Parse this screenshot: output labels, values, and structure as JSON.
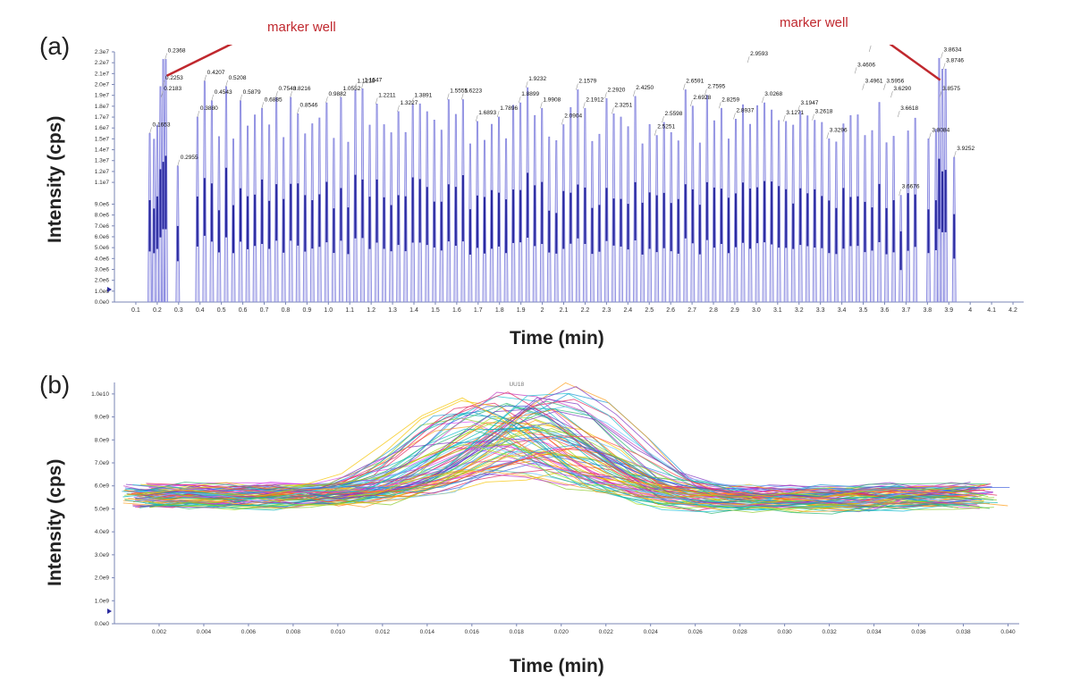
{
  "chart_data": [
    {
      "type": "line",
      "panel_label": "(a)",
      "xlabel": "Time (min)",
      "ylabel": "Intensity (cps)",
      "xlim": [
        0,
        4.25
      ],
      "ylim": [
        0,
        23000000
      ],
      "x_ticks": [
        0.1,
        0.2,
        0.3,
        0.4,
        0.5,
        0.6,
        0.7,
        0.8,
        0.9,
        1.0,
        1.1,
        1.2,
        1.3,
        1.4,
        1.5,
        1.6,
        1.7,
        1.8,
        1.9,
        2,
        2.1,
        2.2,
        2.3,
        2.4,
        2.5,
        2.6,
        2.7,
        2.8,
        2.9,
        3.0,
        3.1,
        3.2,
        3.3,
        3.4,
        3.5,
        3.6,
        3.7,
        3.8,
        3.9,
        4,
        4.1,
        4.2
      ],
      "x_tick_labels": [
        "0.1",
        "0.2",
        "0.3",
        "0.4",
        "0.5",
        "0.6",
        "0.7",
        "0.8",
        "0.9",
        "1.0",
        "1.1",
        "1.2",
        "1.3",
        "1.4",
        "1.5",
        "1.6",
        "1.7",
        "1.8",
        "1.9",
        "2",
        "2.1",
        "2.2",
        "2.3",
        "2.4",
        "2.5",
        "2.6",
        "2.7",
        "2.8",
        "2.9",
        "3.0",
        "3.1",
        "3.2",
        "3.3",
        "3.4",
        "3.5",
        "3.6",
        "3.7",
        "3.8",
        "3.9",
        "4",
        "4.1",
        "4.2"
      ],
      "y_ticks": [
        0,
        1000000,
        2000000,
        3000000,
        4000000,
        5000000,
        6000000,
        7000000,
        8000000,
        9000000,
        11000000,
        12000000,
        13000000,
        14000000,
        15000000,
        16000000,
        17000000,
        18000000,
        19000000,
        20000000,
        21000000,
        22000000,
        23000000
      ],
      "y_tick_labels": [
        "0.0e0",
        "1.0e6",
        "2.0e6",
        "3.0e6",
        "4.0e6",
        "5.0e6",
        "6.0e6",
        "7.0e6",
        "8.0e6",
        "9.0e6",
        "1.1e7",
        "1.2e7",
        "1.3e7",
        "1.4e7",
        "1.5e7",
        "1.6e7",
        "1.7e7",
        "1.8e7",
        "1.9e7",
        "2.0e7",
        "2.1e7",
        "2.2e7",
        "2.3e7"
      ],
      "peaks": [
        {
          "x": 0.1653,
          "y": 15500000
        },
        {
          "x": 0.2183,
          "y": 18800000
        },
        {
          "x": 0.2253,
          "y": 19800000
        },
        {
          "x": 0.2368,
          "y": 22300000
        },
        {
          "x": 0.2955,
          "y": 12500000
        },
        {
          "x": 0.388,
          "y": 17000000
        },
        {
          "x": 0.4207,
          "y": 20300000
        },
        {
          "x": 0.4543,
          "y": 18500000
        },
        {
          "x": 0.5208,
          "y": 19800000
        },
        {
          "x": 0.5879,
          "y": 18500000
        },
        {
          "x": 0.6885,
          "y": 17800000
        },
        {
          "x": 0.7543,
          "y": 18800000
        },
        {
          "x": 0.8216,
          "y": 18800000
        },
        {
          "x": 0.8546,
          "y": 17300000
        },
        {
          "x": 0.9882,
          "y": 18300000
        },
        {
          "x": 1.0552,
          "y": 18800000
        },
        {
          "x": 1.1218,
          "y": 19500000
        },
        {
          "x": 1.1547,
          "y": 19600000
        },
        {
          "x": 1.2211,
          "y": 18200000
        },
        {
          "x": 1.3227,
          "y": 17500000
        },
        {
          "x": 1.3891,
          "y": 18200000
        },
        {
          "x": 1.5555,
          "y": 18600000
        },
        {
          "x": 1.6223,
          "y": 18600000
        },
        {
          "x": 1.6893,
          "y": 16600000
        },
        {
          "x": 1.7896,
          "y": 17000000
        },
        {
          "x": 1.8899,
          "y": 18300000
        },
        {
          "x": 1.9232,
          "y": 19700000
        },
        {
          "x": 1.9908,
          "y": 17800000
        },
        {
          "x": 2.0904,
          "y": 16300000
        },
        {
          "x": 2.1579,
          "y": 19500000
        },
        {
          "x": 2.1912,
          "y": 17800000
        },
        {
          "x": 2.292,
          "y": 18700000
        },
        {
          "x": 2.3251,
          "y": 17300000
        },
        {
          "x": 2.425,
          "y": 18900000
        },
        {
          "x": 2.5251,
          "y": 15300000
        },
        {
          "x": 2.5598,
          "y": 16500000
        },
        {
          "x": 2.6591,
          "y": 19500000
        },
        {
          "x": 2.6928,
          "y": 18000000
        },
        {
          "x": 2.7595,
          "y": 19000000
        },
        {
          "x": 2.8259,
          "y": 17800000
        },
        {
          "x": 2.8937,
          "y": 16800000
        },
        {
          "x": 2.9593,
          "y": 22000000
        },
        {
          "x": 3.0268,
          "y": 18300000
        },
        {
          "x": 3.1271,
          "y": 16600000
        },
        {
          "x": 3.1947,
          "y": 17500000
        },
        {
          "x": 3.2618,
          "y": 16700000
        },
        {
          "x": 3.3296,
          "y": 15000000
        },
        {
          "x": 3.4606,
          "y": 21000000
        },
        {
          "x": 3.4961,
          "y": 19500000
        },
        {
          "x": 3.5278,
          "y": 23000000
        },
        {
          "x": 3.5956,
          "y": 19500000
        },
        {
          "x": 3.629,
          "y": 18800000
        },
        {
          "x": 3.6618,
          "y": 17000000
        },
        {
          "x": 3.6676,
          "y": 9800000
        },
        {
          "x": 3.8084,
          "y": 15000000
        },
        {
          "x": 3.8575,
          "y": 18800000
        },
        {
          "x": 3.8634,
          "y": 22400000
        },
        {
          "x": 3.8746,
          "y": 21400000
        },
        {
          "x": 3.9252,
          "y": 13300000
        }
      ],
      "annotations": [
        "marker well",
        "marker well"
      ]
    },
    {
      "type": "line",
      "panel_label": "(b)",
      "xlabel": "Time (min)",
      "ylabel": "Intensity (cps)",
      "xlim": [
        0,
        0.0405
      ],
      "ylim": [
        0,
        10500000000
      ],
      "x_ticks": [
        0.002,
        0.004,
        0.006,
        0.008,
        0.01,
        0.012,
        0.014,
        0.016,
        0.018,
        0.02,
        0.022,
        0.024,
        0.026,
        0.028,
        0.03,
        0.032,
        0.034,
        0.036,
        0.038,
        0.04
      ],
      "x_tick_labels": [
        "0.002",
        "0.004",
        "0.006",
        "0.008",
        "0.010",
        "0.012",
        "0.014",
        "0.016",
        "0.018",
        "0.020",
        "0.022",
        "0.024",
        "0.026",
        "0.028",
        "0.030",
        "0.032",
        "0.034",
        "0.036",
        "0.038",
        "0.040"
      ],
      "y_ticks": [
        0,
        1000000000,
        2000000000,
        3000000000,
        4000000000,
        5000000000,
        6000000000,
        7000000000,
        8000000000,
        9000000000,
        10000000000
      ],
      "y_tick_labels": [
        "0.0e0",
        "1.0e9",
        "2.0e9",
        "3.0e9",
        "4.0e9",
        "5.0e9",
        "6.0e9",
        "7.0e9",
        "8.0e9",
        "9.0e9",
        "1.0e10"
      ],
      "series_summary": {
        "n_traces": 80,
        "baseline": 5500000000,
        "peak_time": 0.018,
        "peak_min": 6300000000,
        "peak_max": 10400000000
      },
      "top_annotation": "UU18"
    }
  ],
  "colors": {
    "peak_line": "#2a2a9e",
    "peak_fill": "#8a8ae0",
    "marker": "#c0282e",
    "axis": "#7a86b5",
    "plot_bg": "#ffffff",
    "trace_palette": [
      "#c23bbf",
      "#e0245e",
      "#ff6a00",
      "#f5c400",
      "#8ac926",
      "#2ab673",
      "#17becf",
      "#1f9bd6",
      "#3b5bdb",
      "#7b2fbf",
      "#d946ef",
      "#ff4d4d",
      "#00b3b3",
      "#66c2ff",
      "#a0d911",
      "#ff9f1c"
    ]
  }
}
